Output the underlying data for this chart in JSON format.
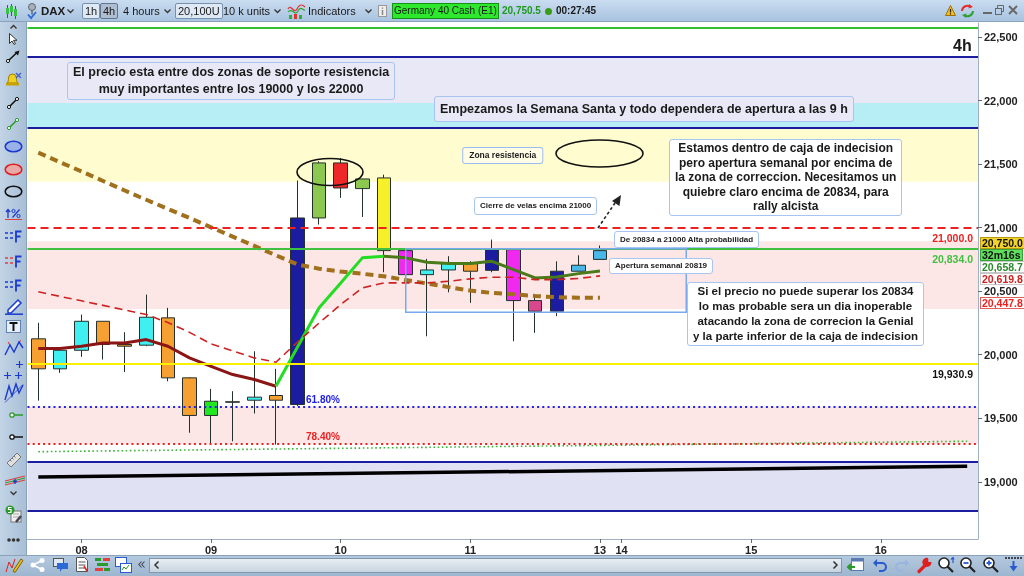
{
  "chart_data": {
    "type": "candlestick",
    "categories": [
      null,
      null,
      "08",
      null,
      null,
      null,
      null,
      null,
      "09",
      null,
      null,
      null,
      null,
      null,
      "10",
      null,
      null,
      null,
      null,
      null,
      "11",
      null,
      null,
      null,
      null,
      null,
      "13",
      "14",
      null,
      null,
      null,
      null,
      null,
      "15",
      null,
      null,
      null,
      null,
      null,
      "16",
      null,
      null,
      null,
      null
    ],
    "ohlc": [
      [
        20125,
        20251,
        19639,
        19889
      ],
      [
        19889,
        20035,
        19857,
        20035
      ],
      [
        20035,
        20316,
        19983,
        20263
      ],
      [
        20263,
        20263,
        19962,
        20080
      ],
      [
        20080,
        20177,
        19863,
        20067
      ],
      [
        20075,
        20473,
        20067,
        20295
      ],
      [
        20290,
        20369,
        19791,
        19818
      ],
      [
        19818,
        19823,
        19386,
        19522
      ],
      [
        19522,
        19731,
        19299,
        19634
      ],
      [
        19626,
        19713,
        19319,
        19630
      ],
      [
        19642,
        20027,
        19537,
        19666
      ],
      [
        19679,
        19889,
        19293,
        19642
      ],
      [
        19608,
        21370,
        19595,
        21076
      ],
      [
        21076,
        21522,
        21024,
        21509
      ],
      [
        21509,
        21548,
        21234,
        21312
      ],
      [
        21307,
        21383,
        21084,
        21383
      ],
      [
        21391,
        21417,
        20649,
        20819
      ],
      [
        20819,
        20819,
        20630,
        20630
      ],
      [
        20630,
        20754,
        20145,
        20667
      ],
      [
        20667,
        20775,
        20491,
        20717
      ],
      [
        20717,
        20735,
        20408,
        20657
      ],
      [
        20664,
        20906,
        20649,
        20827
      ],
      [
        20827,
        20834,
        20106,
        20426
      ],
      [
        20426,
        20465,
        20172,
        20342
      ],
      [
        20342,
        20735,
        20303,
        20657
      ],
      [
        20657,
        20782,
        20657,
        20704
      ],
      [
        20819,
        20859,
        20748,
        20750
      ],
      null,
      null,
      null,
      null,
      null,
      null,
      null,
      null,
      null,
      null,
      null,
      null,
      null,
      null,
      null,
      null,
      null
    ],
    "colors": [
      "#f5a030",
      "#40f0f0",
      "#40f0f0",
      "#f5a030",
      "#f5a030",
      "#40f0f0",
      "#f5a030",
      "#f5a030",
      "#20e820",
      "#c8843c",
      "#40f0f0",
      "#f5a030",
      "#1c1ca0",
      "#8cc850",
      "#ee2828",
      "#8cc850",
      "#f5f028",
      "#f028f0",
      "#40f0f0",
      "#40f0f0",
      "#f5a030",
      "#1c1ca0",
      "#f028f0",
      "#d8488c",
      "#1c1ca0",
      "#48b8e8",
      "#48b8e8",
      null,
      null,
      null,
      null,
      null,
      null,
      null,
      null,
      null,
      null,
      null,
      null,
      null,
      null,
      null,
      null,
      null
    ],
    "series": [
      {
        "type": "line",
        "color": "#a0701c",
        "line_style": "dashed",
        "values": [
          21590,
          21515,
          21442,
          21367,
          21292,
          21219,
          21147,
          21076,
          21002,
          20929,
          20856,
          20782,
          20710,
          20677,
          20654,
          20637,
          20617,
          20588,
          20560,
          20532,
          20505,
          20486,
          20476,
          20462,
          20452,
          20449,
          20448,
          null,
          null,
          null,
          null,
          null,
          null,
          null,
          null,
          null,
          null,
          null,
          null,
          null,
          null,
          null,
          null,
          null
        ]
      },
      {
        "type": "line",
        "color": "#8b1515",
        "line_style": "solid",
        "values": [
          20049,
          20049,
          20067,
          20093,
          20093,
          20119,
          20067,
          19975,
          19909,
          19844,
          19805,
          19752,
          null,
          null,
          null,
          null,
          null,
          null,
          null,
          null,
          null,
          null,
          null,
          null,
          null,
          null,
          null,
          null,
          null,
          null,
          null,
          null,
          null,
          null,
          null,
          null,
          null,
          null,
          null,
          null,
          null,
          null,
          null,
          null
        ]
      },
      {
        "type": "line",
        "color": "#22dd22",
        "line_style": "solid",
        "values": [
          null,
          null,
          null,
          null,
          null,
          null,
          null,
          null,
          null,
          null,
          null,
          19752,
          20060,
          20369,
          20565,
          20762,
          20775,
          null,
          null,
          null,
          null,
          null,
          null,
          null,
          null,
          null,
          null,
          null,
          null,
          null,
          null,
          null,
          null,
          null,
          null,
          null,
          null,
          null,
          null,
          null,
          null,
          null,
          null,
          null
        ]
      },
      {
        "type": "line",
        "color": "#4a7a1a",
        "line_style": "solid",
        "values": [
          null,
          null,
          null,
          null,
          null,
          null,
          null,
          null,
          null,
          null,
          null,
          null,
          null,
          null,
          null,
          null,
          20775,
          20762,
          20727,
          20717,
          20717,
          20735,
          20670,
          20604,
          20612,
          20638,
          20659,
          null,
          null,
          null,
          null,
          null,
          null,
          null,
          null,
          null,
          null,
          null,
          null,
          null,
          null,
          null,
          null,
          null
        ]
      },
      {
        "type": "line",
        "color": "#cc2222",
        "line_style": "dashed",
        "values": [
          20495,
          20459,
          20424,
          20388,
          20352,
          20316,
          20253,
          20176,
          20085,
          20030,
          19975,
          19941,
          20100,
          20250,
          20395,
          20526,
          20565,
          20565,
          20565,
          20578,
          20597,
          20610,
          20610,
          20591,
          20591,
          20600,
          20620,
          null,
          null,
          null,
          null,
          null,
          null,
          null,
          null,
          null,
          null,
          null,
          null,
          null,
          null,
          null,
          null,
          null
        ]
      },
      {
        "type": "line",
        "color": "#000000",
        "line_style": "solid",
        "values": [
          19037,
          null,
          null,
          null,
          null,
          null,
          null,
          null,
          null,
          null,
          null,
          null,
          null,
          null,
          null,
          null,
          null,
          null,
          null,
          null,
          null,
          null,
          null,
          null,
          null,
          null,
          null,
          null,
          null,
          null,
          null,
          null,
          null,
          null,
          null,
          null,
          null,
          null,
          null,
          null,
          null,
          null,
          null,
          19122
        ]
      },
      {
        "type": "line",
        "color": "#3cb43c",
        "line_style": "dotted",
        "values": [
          19237,
          null,
          null,
          null,
          null,
          null,
          null,
          null,
          null,
          null,
          null,
          null,
          null,
          null,
          null,
          null,
          null,
          null,
          null,
          null,
          null,
          null,
          null,
          null,
          null,
          null,
          null,
          null,
          null,
          null,
          null,
          null,
          null,
          null,
          null,
          null,
          null,
          null,
          null,
          null,
          null,
          null,
          null,
          19319
        ]
      }
    ],
    "ylim": [
      18550,
      22610
    ],
    "yticks": [
      {
        "value": 19000,
        "label": "19,000"
      },
      {
        "value": 19500,
        "label": "19,500"
      },
      {
        "value": 20000,
        "label": "20,000"
      },
      {
        "value": 20500,
        "label": "20,500"
      },
      {
        "value": 21000,
        "label": "21,000"
      },
      {
        "value": 21500,
        "label": "21,500"
      },
      {
        "value": 22000,
        "label": "22,000"
      },
      {
        "value": 22500,
        "label": "22,500"
      }
    ],
    "bands": [
      {
        "axis": "y",
        "from": 21790,
        "to": 22343,
        "color": "#e4e4f4"
      },
      {
        "axis": "y",
        "from": 21790,
        "to": 21980,
        "color": "#aeeef6"
      },
      {
        "axis": "y",
        "from": 21360,
        "to": 21775,
        "color": "#fffcc8",
        "label": "Zona resistencia"
      },
      {
        "axis": "y",
        "from": 20360,
        "to": 20892,
        "color": "#fde2e2"
      },
      {
        "axis": "y",
        "from": 19299,
        "to": 19590,
        "color": "#fde2e2"
      },
      {
        "axis": "y",
        "from": 18769,
        "to": 19157,
        "color": "#dcdcf2"
      }
    ],
    "ref_lines": [
      {
        "axis": "y",
        "value": 22571,
        "color": "#30c030"
      },
      {
        "axis": "y",
        "value": 22343,
        "color": "#1c1ca0"
      },
      {
        "axis": "y",
        "value": 21789,
        "color": "#1c1ca0"
      },
      {
        "axis": "y",
        "value": 21000,
        "label": "21,000.0",
        "color": "#ee2020",
        "line_style": "dashed"
      },
      {
        "axis": "y",
        "value": 20834,
        "label": "20,834.0",
        "color": "#40c040"
      },
      {
        "axis": "y",
        "value": 19930.9,
        "label": "19,930.9",
        "color": "#f8f000"
      },
      {
        "axis": "y",
        "value": 19590,
        "color": "#2020e8",
        "line_style": "dotted"
      },
      {
        "axis": "y",
        "value": 19299,
        "color": "#ee2020",
        "line_style": "dotted"
      },
      {
        "axis": "y",
        "value": 19157,
        "color": "#1c1ca0"
      },
      {
        "axis": "y",
        "value": 18769,
        "color": "#1c1ca0"
      }
    ],
    "annotations": [
      "DAX",
      "1h",
      "4h",
      "4 hours",
      "20,100U",
      "10 k units",
      "Indicators",
      "Germany 40 Cash (E1)",
      "20,750.5",
      "00:27:45",
      "4h",
      "El precio esta entre dos zonas de soporte resistencia\nmuy importantes entre los 19000 y los 22000",
      "Empezamos la Semana Santa y todo dependera de apertura a las 9 h",
      "Estamos dentro de caja de indecision\npero apertura semanal por encima de\nla zona de correccion. Necesitamos un\nquiebre claro encima de 20834, para\nrally alcista",
      "Cierre de velas encima 21000",
      "De 20834 a 21000 Alta probabilidad",
      "Apertura semanal 20819",
      "Si el precio no puede superar los 20834\nlo mas probable sera un dia inoperable\natacando la zona de correcion la Genial\ny la parte inferior de la caja de indecision",
      "61.80%",
      "78.40%",
      "20,750.0",
      "32m16s",
      "20,658.7",
      "20,619.8",
      "20,447.8"
    ]
  }
}
